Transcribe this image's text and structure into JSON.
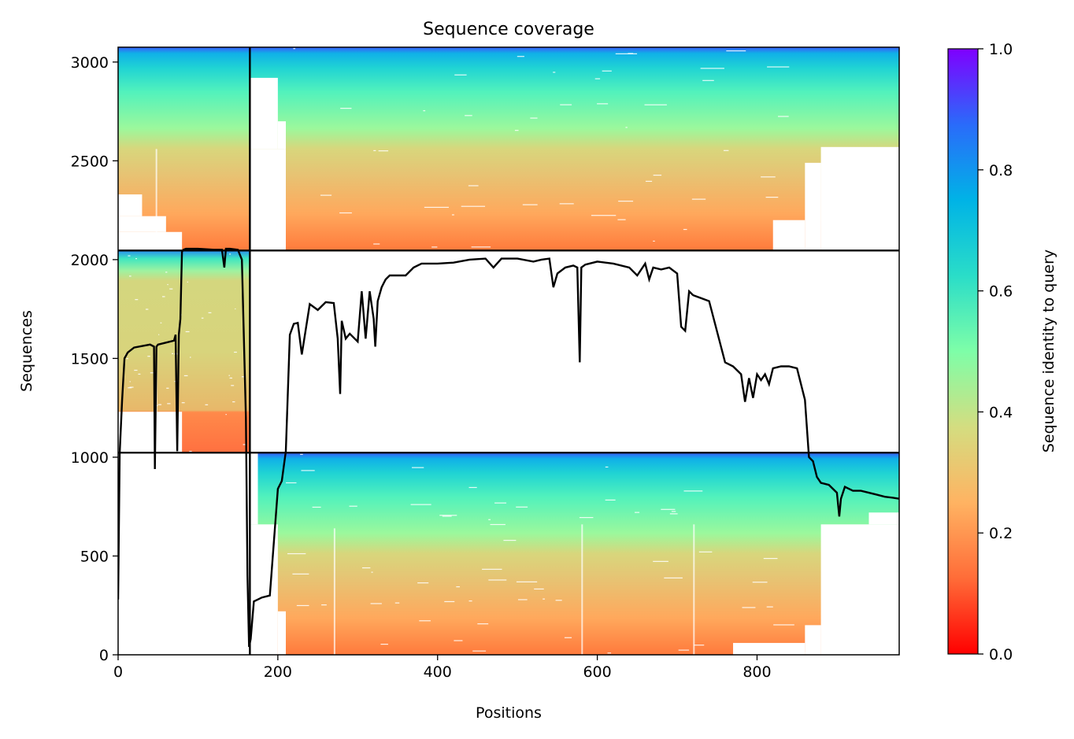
{
  "chart_data": {
    "type": "heatmap",
    "title": "Sequence coverage",
    "xlabel": "Positions",
    "ylabel": "Sequences",
    "xlim": [
      0,
      978
    ],
    "ylim": [
      0,
      3075
    ],
    "x_ticks": [
      0,
      200,
      400,
      600,
      800
    ],
    "y_ticks": [
      0,
      500,
      1000,
      1500,
      2000,
      2500,
      3000
    ],
    "grid": false,
    "colorbar": {
      "label": "Sequence identity to query",
      "range": [
        0.0,
        1.0
      ],
      "ticks": [
        0.0,
        0.2,
        0.4,
        0.6,
        0.8,
        1.0
      ],
      "colormap": "rainbow",
      "gradient": [
        "#ff0000",
        "#ff6c38",
        "#ffb362",
        "#d4dd80",
        "#7efea8",
        "#2addc8",
        "#00b3e6",
        "#2a6bfa",
        "#7f00ff"
      ]
    },
    "chain_boundaries": {
      "vertical": [
        165
      ],
      "horizontal": [
        1023,
        2046
      ]
    },
    "chains": [
      {
        "x_range": [
          0,
          165
        ],
        "y_range": [
          2046,
          3075
        ],
        "coverage": "partial (columns 80-165 filled, 0-80 patchy)"
      },
      {
        "x_range": [
          0,
          165
        ],
        "y_range": [
          1023,
          2046
        ],
        "coverage": "filled"
      },
      {
        "x_range": [
          165,
          978
        ],
        "y_range": [
          0,
          1023
        ],
        "coverage": "filled from ~210 to ~880"
      }
    ],
    "coverage_line": {
      "x": [
        0,
        2,
        5,
        8,
        12,
        20,
        40,
        45,
        46,
        48,
        50,
        60,
        70,
        72,
        74,
        76,
        78,
        80,
        82,
        85,
        100,
        120,
        130,
        133,
        135,
        140,
        150,
        155,
        160,
        162,
        164,
        166,
        170,
        180,
        190,
        200,
        205,
        210,
        215,
        220,
        225,
        230,
        240,
        250,
        260,
        270,
        275,
        278,
        280,
        285,
        290,
        300,
        305,
        310,
        315,
        320,
        322,
        325,
        330,
        335,
        340,
        360,
        370,
        380,
        400,
        420,
        440,
        460,
        470,
        480,
        500,
        520,
        530,
        540,
        545,
        550,
        560,
        570,
        575,
        578,
        580,
        585,
        600,
        620,
        640,
        650,
        660,
        665,
        670,
        680,
        690,
        700,
        705,
        710,
        715,
        720,
        740,
        760,
        770,
        780,
        785,
        790,
        795,
        800,
        805,
        810,
        815,
        820,
        830,
        840,
        850,
        860,
        865,
        870,
        875,
        880,
        890,
        900,
        903,
        905,
        910,
        920,
        930,
        940,
        950,
        960,
        970,
        978
      ],
      "y": [
        280,
        1020,
        1290,
        1500,
        1530,
        1555,
        1570,
        1560,
        940,
        1560,
        1570,
        1580,
        1590,
        1620,
        1030,
        1620,
        1700,
        2040,
        2050,
        2055,
        2055,
        2050,
        2050,
        1960,
        2055,
        2055,
        2050,
        2000,
        1200,
        400,
        40,
        80,
        270,
        290,
        300,
        840,
        880,
        1030,
        1620,
        1675,
        1680,
        1520,
        1775,
        1745,
        1785,
        1780,
        1600,
        1320,
        1690,
        1600,
        1625,
        1585,
        1840,
        1600,
        1840,
        1700,
        1560,
        1790,
        1860,
        1900,
        1920,
        1920,
        1960,
        1980,
        1980,
        1985,
        2000,
        2005,
        1960,
        2005,
        2005,
        1990,
        2000,
        2005,
        1860,
        1930,
        1960,
        1970,
        1960,
        1480,
        1960,
        1975,
        1990,
        1980,
        1960,
        1920,
        1980,
        1900,
        1960,
        1950,
        1960,
        1930,
        1660,
        1640,
        1840,
        1820,
        1790,
        1480,
        1460,
        1420,
        1280,
        1400,
        1300,
        1420,
        1390,
        1420,
        1370,
        1450,
        1460,
        1460,
        1450,
        1290,
        1000,
        980,
        900,
        870,
        860,
        820,
        700,
        790,
        850,
        830,
        830,
        820,
        810,
        800,
        795,
        790
      ]
    }
  }
}
